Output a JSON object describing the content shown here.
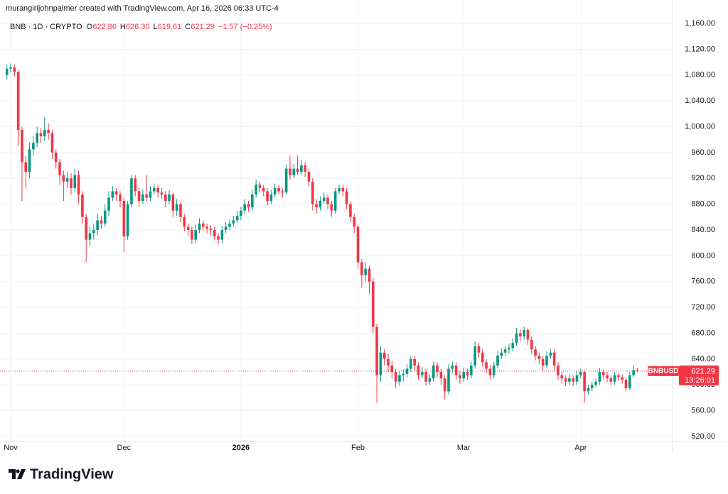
{
  "header": "murangirijohnpalmer created with TradingView.com, Apr 16, 2026 06:33 UTC-4",
  "logo": "TradingView",
  "chart_data": {
    "type": "candlestick",
    "symbol": "BNB · 1D · CRYPTO",
    "ohlc_legend": [
      {
        "key": "O",
        "value": "622.86"
      },
      {
        "key": "H",
        "value": "626.30"
      },
      {
        "key": "L",
        "value": "619.61"
      },
      {
        "key": "C",
        "value": "621.29"
      }
    ],
    "change": "−1.57 (−0.25%)",
    "price_tag": {
      "symbol": "BNBUSD",
      "countdown": "13:26:01"
    },
    "up_color": "#089981",
    "down_color": "#f23645",
    "grid": true,
    "ylim": [
      520,
      1160
    ],
    "yticks": [
      {
        "value": 520,
        "label": "520.00"
      },
      {
        "value": 560,
        "label": "560.00"
      },
      {
        "value": 600,
        "label": "600.00"
      },
      {
        "value": 640,
        "label": "640.00"
      },
      {
        "value": 680,
        "label": "680.00"
      },
      {
        "value": 720,
        "label": "720.00"
      },
      {
        "value": 760,
        "label": "760.00"
      },
      {
        "value": 800,
        "label": "800.00"
      },
      {
        "value": 840,
        "label": "840.00"
      },
      {
        "value": 880,
        "label": "880.00"
      },
      {
        "value": 920,
        "label": "920.00"
      },
      {
        "value": 960,
        "label": "960.00"
      },
      {
        "value": 1000,
        "label": "1,000.00"
      },
      {
        "value": 1040,
        "label": "1,040.00"
      },
      {
        "value": 1080,
        "label": "1,080.00"
      },
      {
        "value": 1120,
        "label": "1,120.00"
      },
      {
        "value": 1160,
        "label": "1,160.00"
      }
    ],
    "categories": [
      null,
      "Nov",
      null,
      null,
      null,
      null,
      null,
      null,
      null,
      null,
      null,
      null,
      null,
      null,
      null,
      null,
      null,
      null,
      null,
      null,
      null,
      null,
      null,
      null,
      null,
      null,
      null,
      null,
      null,
      null,
      null,
      "Dec",
      null,
      null,
      null,
      null,
      null,
      null,
      null,
      null,
      null,
      null,
      null,
      null,
      null,
      null,
      null,
      null,
      null,
      null,
      null,
      null,
      null,
      null,
      null,
      null,
      null,
      null,
      null,
      null,
      null,
      null,
      "2026",
      null,
      null,
      null,
      null,
      null,
      null,
      null,
      null,
      null,
      null,
      null,
      null,
      null,
      null,
      null,
      null,
      null,
      null,
      null,
      null,
      null,
      null,
      null,
      null,
      null,
      null,
      null,
      null,
      null,
      null,
      "Feb",
      null,
      null,
      null,
      null,
      null,
      null,
      null,
      null,
      null,
      null,
      null,
      null,
      null,
      null,
      null,
      null,
      null,
      null,
      null,
      null,
      null,
      null,
      null,
      null,
      null,
      null,
      null,
      "Mar",
      null,
      null,
      null,
      null,
      null,
      null,
      null,
      null,
      null,
      null,
      null,
      null,
      null,
      null,
      null,
      null,
      null,
      null,
      null,
      null,
      null,
      null,
      null,
      null,
      null,
      null,
      null,
      null,
      null,
      null,
      "Apr",
      null,
      null,
      null,
      null,
      null,
      null,
      null,
      null,
      null,
      null,
      null,
      null,
      null,
      null,
      null
    ],
    "open": [
      1080,
      1090,
      1092,
      1085,
      995,
      945,
      930,
      965,
      975,
      990,
      985,
      995,
      990,
      960,
      945,
      925,
      915,
      920,
      905,
      925,
      895,
      860,
      825,
      835,
      840,
      855,
      850,
      870,
      890,
      900,
      895,
      885,
      830,
      880,
      920,
      900,
      885,
      895,
      890,
      900,
      905,
      898,
      895,
      885,
      895,
      870,
      880,
      860,
      845,
      840,
      825,
      840,
      850,
      845,
      842,
      840,
      830,
      825,
      840,
      845,
      850,
      855,
      862,
      870,
      880,
      875,
      895,
      910,
      905,
      900,
      885,
      895,
      905,
      900,
      898,
      935,
      925,
      935,
      930,
      940,
      930,
      915,
      880,
      875,
      885,
      890,
      880,
      870,
      900,
      905,
      900,
      880,
      860,
      845,
      790,
      770,
      780,
      760,
      690,
      615,
      650,
      640,
      630,
      620,
      605,
      615,
      617,
      625,
      640,
      630,
      615,
      620,
      605,
      610,
      630,
      620,
      610,
      590,
      625,
      630,
      615,
      610,
      620,
      615,
      630,
      660,
      650,
      635,
      625,
      615,
      630,
      645,
      650,
      655,
      657,
      665,
      680,
      675,
      685,
      670,
      655,
      645,
      640,
      630,
      645,
      650,
      630,
      615,
      610,
      605,
      610,
      605,
      615,
      620,
      590,
      595,
      600,
      605,
      620,
      615,
      610,
      605,
      615,
      612,
      608,
      595,
      615,
      622.86
    ],
    "high": [
      1096,
      1098,
      1096,
      1088,
      1000,
      955,
      975,
      985,
      1000,
      998,
      1015,
      1005,
      995,
      965,
      950,
      932,
      930,
      928,
      935,
      932,
      900,
      865,
      845,
      850,
      865,
      862,
      880,
      900,
      908,
      905,
      900,
      890,
      885,
      925,
      925,
      905,
      902,
      925,
      908,
      912,
      910,
      905,
      900,
      902,
      898,
      888,
      884,
      865,
      850,
      845,
      848,
      858,
      855,
      850,
      848,
      845,
      835,
      846,
      852,
      856,
      862,
      870,
      876,
      888,
      885,
      902,
      918,
      915,
      910,
      905,
      902,
      912,
      910,
      905,
      942,
      955,
      942,
      955,
      948,
      945,
      935,
      920,
      888,
      892,
      898,
      895,
      885,
      905,
      910,
      910,
      905,
      884,
      865,
      848,
      795,
      790,
      785,
      765,
      695,
      660,
      655,
      648,
      638,
      625,
      622,
      624,
      632,
      645,
      645,
      635,
      628,
      625,
      616,
      636,
      635,
      625,
      615,
      632,
      636,
      635,
      622,
      626,
      625,
      636,
      668,
      665,
      655,
      640,
      630,
      636,
      652,
      656,
      660,
      664,
      672,
      688,
      686,
      690,
      688,
      675,
      660,
      650,
      645,
      652,
      656,
      655,
      635,
      620,
      615,
      616,
      615,
      622,
      625,
      622,
      600,
      605,
      610,
      626,
      624,
      620,
      615,
      620,
      618,
      616,
      612,
      620,
      630,
      626.3
    ],
    "low": [
      1074,
      1084,
      1078,
      970,
      885,
      905,
      920,
      955,
      968,
      975,
      978,
      980,
      950,
      935,
      910,
      885,
      905,
      895,
      898,
      880,
      850,
      790,
      815,
      825,
      832,
      842,
      845,
      862,
      885,
      885,
      875,
      805,
      825,
      875,
      892,
      875,
      880,
      885,
      885,
      895,
      890,
      888,
      875,
      880,
      860,
      862,
      852,
      838,
      830,
      818,
      820,
      835,
      838,
      835,
      832,
      824,
      818,
      820,
      835,
      840,
      845,
      850,
      855,
      865,
      868,
      870,
      890,
      898,
      892,
      878,
      880,
      890,
      895,
      890,
      895,
      918,
      920,
      925,
      925,
      922,
      908,
      870,
      865,
      870,
      880,
      872,
      860,
      865,
      895,
      892,
      872,
      852,
      835,
      780,
      750,
      760,
      740,
      680,
      572,
      605,
      630,
      620,
      610,
      595,
      598,
      605,
      612,
      620,
      622,
      608,
      610,
      598,
      600,
      605,
      612,
      600,
      578,
      585,
      618,
      608,
      602,
      605,
      608,
      610,
      625,
      642,
      628,
      618,
      608,
      610,
      625,
      640,
      645,
      648,
      652,
      660,
      668,
      670,
      662,
      648,
      638,
      632,
      622,
      625,
      640,
      622,
      608,
      602,
      598,
      600,
      598,
      600,
      610,
      572,
      585,
      590,
      596,
      600,
      608,
      604,
      600,
      600,
      606,
      602,
      590,
      592,
      612,
      619.61
    ],
    "close": [
      1090,
      1092,
      1085,
      995,
      945,
      930,
      965,
      975,
      990,
      985,
      995,
      990,
      960,
      945,
      925,
      915,
      920,
      905,
      925,
      895,
      860,
      825,
      835,
      840,
      855,
      850,
      870,
      890,
      900,
      895,
      885,
      830,
      880,
      920,
      900,
      885,
      895,
      890,
      900,
      905,
      898,
      895,
      885,
      895,
      870,
      880,
      860,
      845,
      840,
      825,
      840,
      850,
      845,
      842,
      840,
      830,
      825,
      840,
      845,
      850,
      855,
      862,
      870,
      880,
      875,
      895,
      910,
      905,
      900,
      885,
      895,
      905,
      900,
      898,
      935,
      925,
      935,
      930,
      940,
      930,
      915,
      880,
      875,
      885,
      890,
      880,
      870,
      900,
      905,
      900,
      880,
      860,
      845,
      790,
      770,
      780,
      760,
      690,
      615,
      650,
      640,
      630,
      620,
      605,
      615,
      617,
      625,
      640,
      630,
      615,
      620,
      605,
      610,
      630,
      620,
      610,
      590,
      625,
      630,
      615,
      610,
      620,
      615,
      630,
      660,
      650,
      635,
      625,
      615,
      630,
      645,
      650,
      655,
      657,
      665,
      680,
      675,
      685,
      670,
      655,
      645,
      640,
      630,
      645,
      650,
      630,
      615,
      610,
      605,
      610,
      605,
      615,
      620,
      590,
      595,
      600,
      605,
      620,
      615,
      610,
      605,
      615,
      612,
      608,
      595,
      615,
      622.86,
      621.29
    ]
  }
}
